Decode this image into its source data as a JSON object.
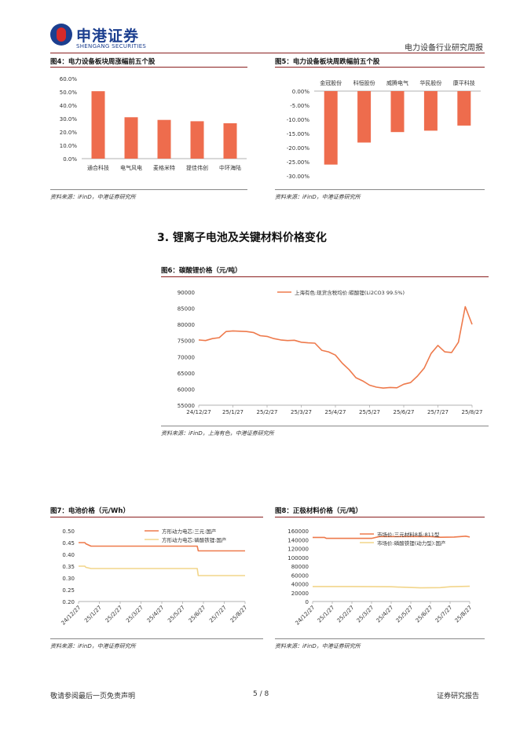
{
  "header": {
    "logo_cn": "申港证券",
    "logo_en": "SHENGANG SECURITIES",
    "report_title": "电力设备行业研究周报"
  },
  "fig4": {
    "title": "图4：电力设备板块周涨幅前五个股",
    "source": "资料来源：iFinD，中港证券研究所"
  },
  "fig5": {
    "title": "图5：电力设备板块周跌幅前五个股",
    "source": "资料来源：iFinD，中港证券研究所"
  },
  "section": {
    "title": "3. 锂离子电池及关键材料价格变化"
  },
  "fig6": {
    "title": "图6：碳酸锂价格（元/吨）",
    "source": "资料来源：iFinD，上海有色，中港证券研究所"
  },
  "fig7": {
    "title": "图7：电池价格（元/Wh）",
    "source": "资料来源：iFinD，中港证券研究所"
  },
  "fig8": {
    "title": "图8：正极材料价格（元/吨）",
    "source": "资料来源：iFinD，中港证券研究所"
  },
  "footer": {
    "left": "敬请参阅最后一页免责声明",
    "page": "5 / 8",
    "right": "证券研究报告"
  },
  "colors": {
    "bar": "#ee6c4d",
    "line_orange": "#ee7a4c",
    "line_yellow": "#f2d58a",
    "axis": "#999999",
    "dark_rule": "#8a1f1f"
  },
  "chart_data": [
    {
      "id": "fig4",
      "type": "bar",
      "categories": [
        "通合科技",
        "电气风电",
        "麦格米特",
        "提佳伟创",
        "中环海陆"
      ],
      "values": [
        50.5,
        31.0,
        29.0,
        28.0,
        26.5
      ],
      "yticks": [
        "0.0%",
        "10.0%",
        "20.0%",
        "30.0%",
        "40.0%",
        "50.0%",
        "60.0%"
      ],
      "ylim": [
        0,
        60
      ]
    },
    {
      "id": "fig5",
      "type": "bar",
      "categories": [
        "金冠股份",
        "科恒股份",
        "威腾电气",
        "华民股份",
        "康平科技"
      ],
      "values": [
        -26.0,
        -18.2,
        -14.5,
        -14.0,
        -12.2
      ],
      "yticks": [
        "0.00%",
        "-5.00%",
        "-10.00%",
        "-15.00%",
        "-20.00%",
        "-25.00%",
        "-30.00%"
      ],
      "ylim": [
        -30,
        0
      ]
    },
    {
      "id": "fig6",
      "type": "line",
      "legend": "上海有色:现货含税均价:碳酸锂(Li2CO3 99.5%)",
      "xticks": [
        "24/12/27",
        "25/1/27",
        "25/2/27",
        "25/3/27",
        "25/4/27",
        "25/5/27",
        "25/6/27",
        "25/7/27",
        "25/8/27"
      ],
      "yticks": [
        "55000",
        "60000",
        "65000",
        "70000",
        "75000",
        "80000",
        "85000",
        "90000"
      ],
      "ylim": [
        55000,
        90000
      ],
      "series": [
        {
          "name": "上海有色:现货含税均价:碳酸锂(Li2CO3 99.5%)",
          "x": [
            0,
            0.2,
            0.4,
            0.6,
            0.8,
            1.0,
            1.2,
            1.4,
            1.6,
            1.8,
            2.0,
            2.2,
            2.4,
            2.6,
            2.8,
            3.0,
            3.2,
            3.4,
            3.6,
            3.8,
            4.0,
            4.2,
            4.4,
            4.6,
            4.8,
            5.0,
            5.2,
            5.4,
            5.6,
            5.8,
            6.0,
            6.2,
            6.4,
            6.6,
            6.8,
            7.0,
            7.2,
            7.4,
            7.6,
            7.8,
            8.0
          ],
          "values": [
            75200,
            75000,
            75600,
            75900,
            77800,
            78000,
            77900,
            77800,
            77500,
            76500,
            76300,
            75600,
            75200,
            75000,
            75100,
            74500,
            74300,
            74200,
            72000,
            71500,
            70500,
            68000,
            66000,
            63500,
            62500,
            61200,
            60600,
            60300,
            60500,
            60400,
            61500,
            62000,
            64000,
            66500,
            71000,
            73500,
            71500,
            71300,
            74500,
            85500,
            80000
          ]
        }
      ]
    },
    {
      "id": "fig7",
      "type": "line",
      "xticks": [
        "24/12/27",
        "25/1/27",
        "25/2/27",
        "25/3/27",
        "25/4/27",
        "25/5/27",
        "25/6/27",
        "25/7/27",
        "25/8/27"
      ],
      "yticks": [
        "0.20",
        "0.25",
        "0.30",
        "0.35",
        "0.40",
        "0.45",
        "0.50"
      ],
      "ylim": [
        0.2,
        0.5
      ],
      "series": [
        {
          "name": "方形动力电芯:三元:国产",
          "x": [
            0,
            0.3,
            0.35,
            0.6,
            5.7,
            5.75,
            8.0
          ],
          "values": [
            0.45,
            0.45,
            0.445,
            0.435,
            0.435,
            0.415,
            0.415
          ]
        },
        {
          "name": "方形动力电芯:磷酸铁锂:国产",
          "x": [
            0,
            0.3,
            0.35,
            0.6,
            5.7,
            5.75,
            8.0
          ],
          "values": [
            0.35,
            0.35,
            0.345,
            0.34,
            0.34,
            0.31,
            0.31
          ]
        }
      ]
    },
    {
      "id": "fig8",
      "type": "line",
      "xticks": [
        "24/12/27",
        "25/1/27",
        "25/2/27",
        "25/3/27",
        "25/4/27",
        "25/5/27",
        "25/6/27",
        "25/7/27",
        "25/8/27"
      ],
      "yticks": [
        "0",
        "20000",
        "40000",
        "60000",
        "80000",
        "100000",
        "120000",
        "140000",
        "160000"
      ],
      "ylim": [
        0,
        160000
      ],
      "series": [
        {
          "name": "市场价:三元材料8系:811型",
          "x": [
            0,
            0.6,
            0.7,
            3.0,
            3.4,
            6.0,
            6.5,
            7.2,
            7.8,
            8.0
          ],
          "values": [
            145000,
            145000,
            143000,
            143000,
            147000,
            147000,
            145500,
            146000,
            148000,
            146000
          ]
        },
        {
          "name": "市场价:磷酸铁锂(动力型):国产",
          "x": [
            0,
            2.0,
            4.0,
            4.5,
            5.5,
            6.5,
            7.0,
            8.0
          ],
          "values": [
            34000,
            34000,
            33500,
            32500,
            31000,
            31500,
            33500,
            34500
          ]
        }
      ]
    }
  ]
}
